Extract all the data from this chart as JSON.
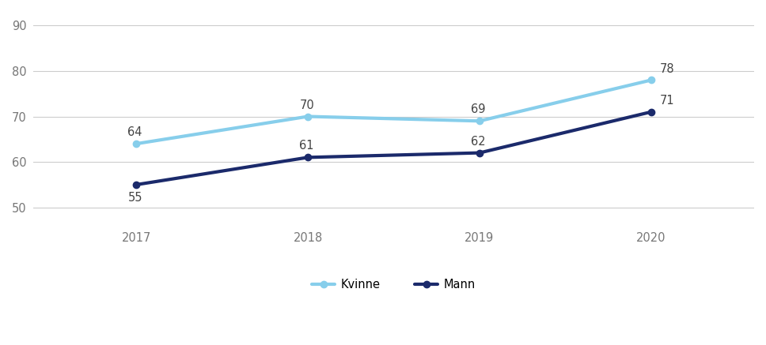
{
  "years": [
    2017,
    2018,
    2019,
    2020
  ],
  "kvinne_values": [
    64,
    70,
    69,
    78
  ],
  "mann_values": [
    55,
    61,
    62,
    71
  ],
  "kvinne_color": "#87CEEB",
  "mann_color": "#1B2A6B",
  "kvinne_label": "Kvinne",
  "mann_label": "Mann",
  "xlim": [
    2016.4,
    2020.6
  ],
  "ylim": [
    46,
    93
  ],
  "yticks": [
    50,
    60,
    70,
    80,
    90
  ],
  "marker_size": 6,
  "line_width": 3.0,
  "background_color": "#ffffff",
  "grid_color": "#cccccc",
  "label_fontsize": 10.5,
  "tick_fontsize": 10.5,
  "legend_fontsize": 10.5,
  "annotation_color": "#444444"
}
